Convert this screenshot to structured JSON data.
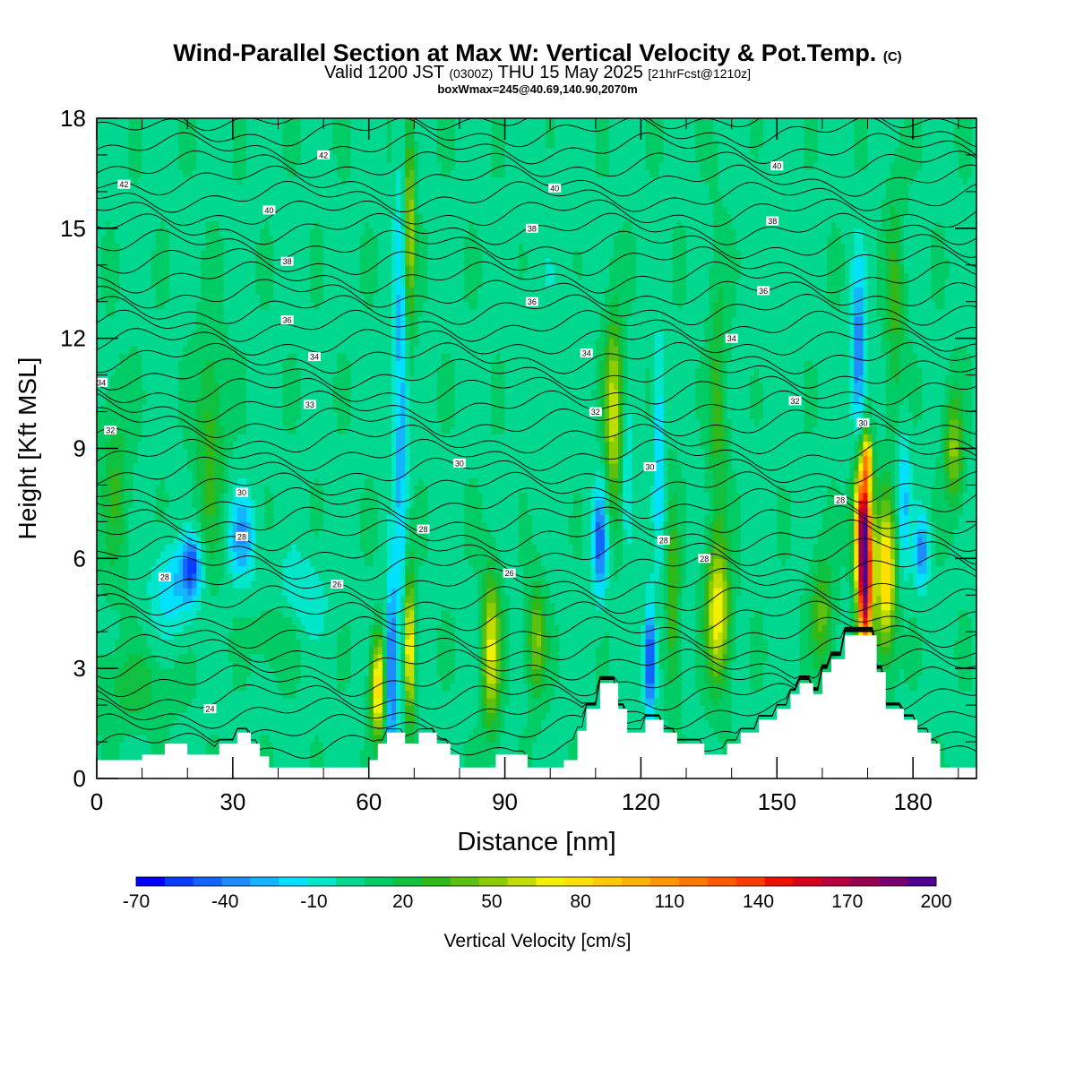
{
  "title": {
    "main": "Wind-Parallel Section at Max W: Vertical Velocity & Pot.Temp.",
    "copyright": "(C)"
  },
  "subtitle": {
    "valid_prefix": "Valid 1200 JST",
    "utc": "(0300Z)",
    "date": "THU 15 May 2025",
    "forecast": "[21hrFcst@1210z]"
  },
  "subtitle2": "boxWmax=245@40.69,140.90,2070m",
  "colors": {
    "background_field": "#00d080",
    "contour": "#000000",
    "terrain": "#ffffff"
  },
  "chart_data": {
    "type": "heatmap",
    "xlabel": "Distance [nm]",
    "ylabel": "Height [Kft MSL]",
    "xlim": [
      0,
      194
    ],
    "ylim": [
      0,
      18
    ],
    "x_ticks": [
      0,
      30,
      60,
      90,
      120,
      150,
      180
    ],
    "y_ticks": [
      0,
      3,
      6,
      9,
      12,
      15,
      18
    ],
    "colorbar": {
      "label": "Vertical Velocity [cm/s]",
      "tick_labels": [
        "-70",
        "-40",
        "-10",
        "20",
        "50",
        "80",
        "110",
        "140",
        "170",
        "200"
      ],
      "levels": [
        -70,
        -60,
        -50,
        -40,
        -30,
        -20,
        -10,
        0,
        10,
        20,
        30,
        40,
        50,
        60,
        70,
        80,
        90,
        100,
        110,
        120,
        130,
        140,
        150,
        160,
        170,
        180,
        190,
        200
      ],
      "colors": [
        "#0000ff",
        "#0a3cff",
        "#1464ff",
        "#1e8cff",
        "#14b4ff",
        "#00e0ff",
        "#00e6c8",
        "#00d890",
        "#00cc66",
        "#10c040",
        "#30b818",
        "#5cc010",
        "#8ccc00",
        "#c0dc00",
        "#f0f000",
        "#ffe000",
        "#ffc800",
        "#ffb000",
        "#ff9600",
        "#ff7800",
        "#ff5a00",
        "#ff3c00",
        "#f01000",
        "#d80020",
        "#b80040",
        "#980050",
        "#780070",
        "#500090"
      ]
    },
    "theta_contour_labels": [
      {
        "x": 1,
        "z": 10.8,
        "label": "34"
      },
      {
        "x": 3,
        "z": 9.5,
        "label": "32"
      },
      {
        "x": 6,
        "z": 16.2,
        "label": "42"
      },
      {
        "x": 15,
        "z": 5.5,
        "label": "28"
      },
      {
        "x": 25,
        "z": 1.9,
        "label": "24"
      },
      {
        "x": 32,
        "z": 7.8,
        "label": "30"
      },
      {
        "x": 32,
        "z": 6.6,
        "label": "28"
      },
      {
        "x": 38,
        "z": 15.5,
        "label": "40"
      },
      {
        "x": 42,
        "z": 14.1,
        "label": "38"
      },
      {
        "x": 42,
        "z": 12.5,
        "label": "36"
      },
      {
        "x": 48,
        "z": 11.5,
        "label": "34"
      },
      {
        "x": 47,
        "z": 10.2,
        "label": "33"
      },
      {
        "x": 50,
        "z": 17.0,
        "label": "42"
      },
      {
        "x": 53,
        "z": 5.3,
        "label": "26"
      },
      {
        "x": 72,
        "z": 6.8,
        "label": "28"
      },
      {
        "x": 80,
        "z": 8.6,
        "label": "30"
      },
      {
        "x": 91,
        "z": 5.6,
        "label": "26"
      },
      {
        "x": 96,
        "z": 15.0,
        "label": "38"
      },
      {
        "x": 96,
        "z": 13.0,
        "label": "36"
      },
      {
        "x": 101,
        "z": 16.1,
        "label": "40"
      },
      {
        "x": 108,
        "z": 11.6,
        "label": "34"
      },
      {
        "x": 110,
        "z": 10.0,
        "label": "32"
      },
      {
        "x": 122,
        "z": 8.5,
        "label": "30"
      },
      {
        "x": 125,
        "z": 6.5,
        "label": "28"
      },
      {
        "x": 134,
        "z": 6.0,
        "label": "28"
      },
      {
        "x": 140,
        "z": 12.0,
        "label": "34"
      },
      {
        "x": 147,
        "z": 13.3,
        "label": "36"
      },
      {
        "x": 149,
        "z": 15.2,
        "label": "38"
      },
      {
        "x": 150,
        "z": 16.7,
        "label": "40"
      },
      {
        "x": 154,
        "z": 10.3,
        "label": "32"
      },
      {
        "x": 164,
        "z": 7.6,
        "label": "28"
      },
      {
        "x": 169,
        "z": 9.7,
        "label": "30"
      }
    ],
    "terrain_profile": [
      [
        0,
        0.5
      ],
      [
        10,
        0.5
      ],
      [
        10,
        0.65
      ],
      [
        15,
        0.65
      ],
      [
        15,
        0.95
      ],
      [
        20,
        0.95
      ],
      [
        20,
        0.65
      ],
      [
        27,
        0.65
      ],
      [
        27,
        0.95
      ],
      [
        31,
        0.95
      ],
      [
        31,
        1.25
      ],
      [
        34,
        1.25
      ],
      [
        34,
        0.95
      ],
      [
        36,
        0.95
      ],
      [
        36,
        0.6
      ],
      [
        38,
        0.6
      ],
      [
        38,
        0.3
      ],
      [
        60,
        0.3
      ],
      [
        60,
        0.5
      ],
      [
        62,
        0.5
      ],
      [
        62,
        0.95
      ],
      [
        64,
        0.95
      ],
      [
        64,
        1.25
      ],
      [
        68,
        1.25
      ],
      [
        68,
        0.95
      ],
      [
        71,
        0.95
      ],
      [
        71,
        1.25
      ],
      [
        75,
        1.25
      ],
      [
        75,
        0.95
      ],
      [
        78,
        0.95
      ],
      [
        78,
        0.65
      ],
      [
        80,
        0.65
      ],
      [
        80,
        0.3
      ],
      [
        88,
        0.3
      ],
      [
        88,
        0.65
      ],
      [
        95,
        0.65
      ],
      [
        95,
        0.3
      ],
      [
        103,
        0.3
      ],
      [
        103,
        0.5
      ],
      [
        106,
        0.5
      ],
      [
        106,
        1.3
      ],
      [
        108,
        1.3
      ],
      [
        108,
        1.9
      ],
      [
        111,
        1.9
      ],
      [
        111,
        2.6
      ],
      [
        115,
        2.6
      ],
      [
        115,
        1.9
      ],
      [
        117,
        1.9
      ],
      [
        117,
        1.25
      ],
      [
        121,
        1.25
      ],
      [
        121,
        1.6
      ],
      [
        125,
        1.6
      ],
      [
        125,
        1.25
      ],
      [
        128,
        1.25
      ],
      [
        128,
        0.95
      ],
      [
        134,
        0.95
      ],
      [
        134,
        0.65
      ],
      [
        139,
        0.65
      ],
      [
        139,
        0.95
      ],
      [
        142,
        0.95
      ],
      [
        142,
        1.25
      ],
      [
        146,
        1.25
      ],
      [
        146,
        1.6
      ],
      [
        150,
        1.6
      ],
      [
        150,
        1.9
      ],
      [
        153,
        1.9
      ],
      [
        153,
        2.3
      ],
      [
        155,
        2.3
      ],
      [
        155,
        2.6
      ],
      [
        158,
        2.6
      ],
      [
        158,
        2.3
      ],
      [
        160,
        2.3
      ],
      [
        160,
        2.9
      ],
      [
        162,
        2.9
      ],
      [
        162,
        3.25
      ],
      [
        165,
        3.25
      ],
      [
        165,
        3.9
      ],
      [
        172,
        3.9
      ],
      [
        172,
        2.9
      ],
      [
        174,
        2.9
      ],
      [
        174,
        1.9
      ],
      [
        178,
        1.9
      ],
      [
        178,
        1.6
      ],
      [
        181,
        1.6
      ],
      [
        181,
        1.25
      ],
      [
        184,
        1.25
      ],
      [
        184,
        0.95
      ],
      [
        186,
        0.95
      ],
      [
        186,
        0.3
      ],
      [
        194,
        0.3
      ]
    ],
    "w_features": [
      {
        "x": 4,
        "z": 8.0,
        "sx": 3,
        "sz": 2.5,
        "w": 22
      },
      {
        "x": 17,
        "z": 5.2,
        "sx": 5,
        "sz": 1.2,
        "w": -28
      },
      {
        "x": 21,
        "z": 5.8,
        "sx": 2,
        "sz": 0.8,
        "w": -55
      },
      {
        "x": 32,
        "z": 6.6,
        "sx": 3,
        "sz": 1.2,
        "w": -38
      },
      {
        "x": 25,
        "z": 9.0,
        "sx": 3,
        "sz": 3,
        "w": 28
      },
      {
        "x": 40,
        "z": 4.0,
        "sx": 5,
        "sz": 1.0,
        "w": 14
      },
      {
        "x": 45,
        "z": 5.0,
        "sx": 6,
        "sz": 1.2,
        "w": -18
      },
      {
        "x": 8,
        "z": 2.5,
        "sx": 8,
        "sz": 1.0,
        "w": 18
      },
      {
        "x": 62,
        "z": 2.5,
        "sx": 1.5,
        "sz": 1.3,
        "w": 88
      },
      {
        "x": 65,
        "z": 3.0,
        "sx": 1.2,
        "sz": 2.5,
        "w": -58
      },
      {
        "x": 69,
        "z": 3.6,
        "sx": 1.0,
        "sz": 2.0,
        "w": 85
      },
      {
        "x": 67,
        "z": 10.5,
        "sx": 1.5,
        "sz": 6.0,
        "w": -35
      },
      {
        "x": 69,
        "z": 15.0,
        "sx": 1.2,
        "sz": 2.8,
        "w": 55
      },
      {
        "x": 87,
        "z": 3.5,
        "sx": 2,
        "sz": 2.0,
        "w": 65
      },
      {
        "x": 97,
        "z": 3.8,
        "sx": 2,
        "sz": 1.5,
        "w": 45
      },
      {
        "x": 111,
        "z": 6.5,
        "sx": 1.5,
        "sz": 1.5,
        "w": -55
      },
      {
        "x": 114,
        "z": 10.0,
        "sx": 2,
        "sz": 2.5,
        "w": 60
      },
      {
        "x": 117,
        "z": 8.0,
        "sx": 1.2,
        "sz": 2.0,
        "w": -25
      },
      {
        "x": 122,
        "z": 3.2,
        "sx": 1.2,
        "sz": 1.5,
        "w": -70
      },
      {
        "x": 124,
        "z": 9.0,
        "sx": 1.2,
        "sz": 3.0,
        "w": -30
      },
      {
        "x": 127,
        "z": 5.0,
        "sx": 1.5,
        "sz": 2.5,
        "w": 35
      },
      {
        "x": 137,
        "z": 4.5,
        "sx": 2.5,
        "sz": 1.8,
        "w": 70
      },
      {
        "x": 137,
        "z": 10.0,
        "sx": 2.0,
        "sz": 4,
        "w": 25
      },
      {
        "x": 160,
        "z": 4.5,
        "sx": 2.5,
        "sz": 1.5,
        "w": 35
      },
      {
        "x": 169,
        "z": 7.0,
        "sx": 1.8,
        "sz": 1.8,
        "w": 160
      },
      {
        "x": 169.5,
        "z": 5.0,
        "sx": 1.5,
        "sz": 1.8,
        "w": 150
      },
      {
        "x": 170,
        "z": 8.7,
        "sx": 1.0,
        "sz": 0.6,
        "w": 70
      },
      {
        "x": 174,
        "z": 5.5,
        "sx": 2.2,
        "sz": 2.0,
        "w": 85
      },
      {
        "x": 168,
        "z": 11.5,
        "sx": 1.5,
        "sz": 2.5,
        "w": -50
      },
      {
        "x": 178,
        "z": 7.5,
        "sx": 1.5,
        "sz": 2.0,
        "w": -30
      },
      {
        "x": 182,
        "z": 6.2,
        "sx": 1.5,
        "sz": 1.0,
        "w": -45
      },
      {
        "x": 189,
        "z": 9.0,
        "sx": 2.0,
        "sz": 1.5,
        "w": 45
      },
      {
        "x": 176,
        "z": 13.0,
        "sx": 2.0,
        "sz": 3,
        "w": 25
      },
      {
        "x": 100,
        "z": 12.0,
        "sx": 6,
        "sz": 5,
        "w": -5
      },
      {
        "x": 150,
        "z": 14.0,
        "sx": 6,
        "sz": 4,
        "w": -4
      }
    ]
  }
}
